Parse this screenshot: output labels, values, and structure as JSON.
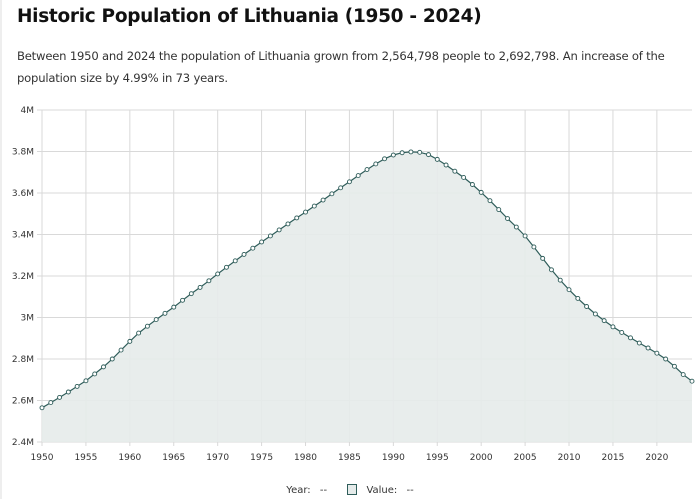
{
  "title": "Historic Population of Lithuania (1950 - 2024)",
  "description": "Between 1950 and 2024 the population of Lithuania grown from 2,564,798 people to 2,692,798. An increase of the population size by 4.99% in 73 years.",
  "legend": {
    "year_label": "Year:",
    "year_value": "--",
    "value_label": "Value:",
    "value_value": "--"
  },
  "colors": {
    "line": "#2f5d5a",
    "fill": "#e5ebea",
    "grid": "#d9d9d9"
  },
  "chart_data": {
    "type": "area",
    "title": "Historic Population of Lithuania (1950 - 2024)",
    "xlabel": "",
    "ylabel": "",
    "xlim": [
      1950,
      2024
    ],
    "ylim": [
      2.4,
      4.0
    ],
    "y_unit": "millions",
    "grid": true,
    "x_ticks": [
      "1950",
      "1955",
      "1960",
      "1965",
      "1970",
      "1975",
      "1980",
      "1985",
      "1990",
      "1995",
      "2000",
      "2005",
      "2010",
      "2015",
      "2020"
    ],
    "y_ticks": [
      "2.4M",
      "2.6M",
      "2.8M",
      "3M",
      "3.2M",
      "3.4M",
      "3.6M",
      "3.8M",
      "4M"
    ],
    "x_start": 1950,
    "values": [
      2.565,
      2.59,
      2.615,
      2.641,
      2.668,
      2.695,
      2.728,
      2.762,
      2.8,
      2.843,
      2.885,
      2.925,
      2.958,
      2.99,
      3.02,
      3.05,
      3.083,
      3.115,
      3.145,
      3.177,
      3.21,
      3.242,
      3.273,
      3.304,
      3.334,
      3.364,
      3.393,
      3.422,
      3.451,
      3.48,
      3.508,
      3.537,
      3.566,
      3.596,
      3.625,
      3.654,
      3.684,
      3.713,
      3.74,
      3.765,
      3.783,
      3.794,
      3.798,
      3.796,
      3.785,
      3.762,
      3.735,
      3.705,
      3.675,
      3.641,
      3.603,
      3.563,
      3.52,
      3.477,
      3.436,
      3.393,
      3.34,
      3.285,
      3.23,
      3.18,
      3.134,
      3.092,
      3.053,
      3.017,
      2.985,
      2.955,
      2.928,
      2.902,
      2.877,
      2.853,
      2.828,
      2.8,
      2.765,
      2.725,
      2.693
    ]
  }
}
